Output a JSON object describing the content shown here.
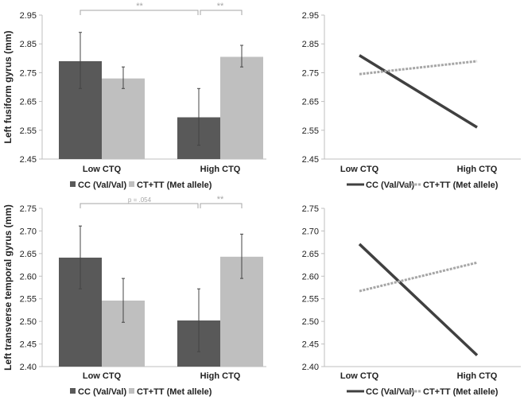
{
  "colors": {
    "cc": "#595959",
    "ct": "#bfbfbf",
    "axis": "#bfbfbf",
    "text": "#222222",
    "annot": "#a6a6a6"
  },
  "chart_data": [
    {
      "type": "bar",
      "ylabel": "Left fusiform gyrus (mm)",
      "categories": [
        "Low CTQ",
        "High CTQ"
      ],
      "ylim": [
        2.45,
        2.95
      ],
      "ticks": [
        "2.45",
        "2.55",
        "2.65",
        "2.75",
        "2.85",
        "2.95"
      ],
      "series": [
        {
          "name": "CC (Val/Val)",
          "values": [
            2.79,
            2.595
          ],
          "err_low": [
            2.695,
            2.498
          ],
          "err_high": [
            2.89,
            2.695
          ]
        },
        {
          "name": "CT+TT (Met allele)",
          "values": [
            2.73,
            2.805
          ],
          "err_low": [
            2.695,
            2.77
          ],
          "err_high": [
            2.77,
            2.845
          ]
        }
      ],
      "annotations": [
        "**",
        "**"
      ]
    },
    {
      "type": "line",
      "categories": [
        "Low CTQ",
        "High CTQ"
      ],
      "ylim": [
        2.45,
        2.95
      ],
      "ticks": [
        "2.45",
        "2.55",
        "2.65",
        "2.75",
        "2.85",
        "2.95"
      ],
      "series": [
        {
          "name": "CC (Val/Val)",
          "values": [
            2.81,
            2.56
          ]
        },
        {
          "name": "CT+TT (Met allele)",
          "values": [
            2.745,
            2.79
          ]
        }
      ]
    },
    {
      "type": "bar",
      "ylabel": "Left transverse temporal gyrus (mm)",
      "categories": [
        "Low CTQ",
        "High CTQ"
      ],
      "ylim": [
        2.4,
        2.75
      ],
      "ticks": [
        "2.40",
        "2.45",
        "2.50",
        "2.55",
        "2.60",
        "2.65",
        "2.70",
        "2.75"
      ],
      "series": [
        {
          "name": "CC (Val/Val)",
          "values": [
            2.641,
            2.502
          ],
          "err_low": [
            2.572,
            2.433
          ],
          "err_high": [
            2.711,
            2.572
          ]
        },
        {
          "name": "CT+TT (Met allele)",
          "values": [
            2.546,
            2.643
          ],
          "err_low": [
            2.498,
            2.595
          ],
          "err_high": [
            2.595,
            2.693
          ]
        }
      ],
      "annotations": [
        "p = .054",
        "**"
      ]
    },
    {
      "type": "line",
      "categories": [
        "Low CTQ",
        "High CTQ"
      ],
      "ylim": [
        2.4,
        2.75
      ],
      "ticks": [
        "2.40",
        "2.45",
        "2.50",
        "2.55",
        "2.60",
        "2.65",
        "2.70",
        "2.75"
      ],
      "series": [
        {
          "name": "CC (Val/Val)",
          "values": [
            2.671,
            2.425
          ]
        },
        {
          "name": "CT+TT (Met allele)",
          "values": [
            2.567,
            2.63
          ]
        }
      ]
    }
  ]
}
